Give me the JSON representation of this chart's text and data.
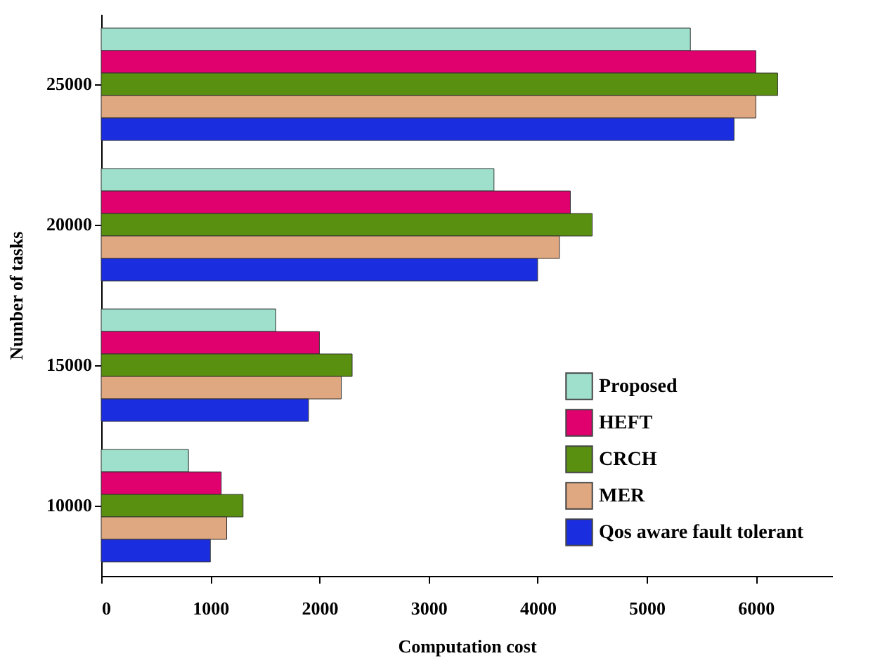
{
  "chart_data": {
    "type": "bar",
    "orientation": "horizontal",
    "xlabel": "Computation cost",
    "ylabel": "Number of tasks",
    "categories": [
      "25000",
      "20000",
      "15000",
      "10000"
    ],
    "series": [
      {
        "name": "Proposed",
        "color": "#9fe0cc",
        "values": [
          5400,
          3600,
          1600,
          800
        ]
      },
      {
        "name": "HEFT",
        "color": "#e0006e",
        "values": [
          6000,
          4300,
          2000,
          1100
        ]
      },
      {
        "name": "CRCH",
        "color": "#5a9010",
        "values": [
          6200,
          4500,
          2300,
          1300
        ]
      },
      {
        "name": "MER",
        "color": "#e0a880",
        "values": [
          6000,
          4200,
          2200,
          1150
        ]
      },
      {
        "name": "Qos aware fault tolerant",
        "color": "#1a2ee0",
        "values": [
          5800,
          4000,
          1900,
          1000
        ]
      }
    ],
    "xlim": [
      0,
      6700
    ],
    "xticks": [
      0,
      1000,
      2000,
      3000,
      4000,
      5000,
      6000
    ],
    "grid": false,
    "legend": "bottom right"
  }
}
